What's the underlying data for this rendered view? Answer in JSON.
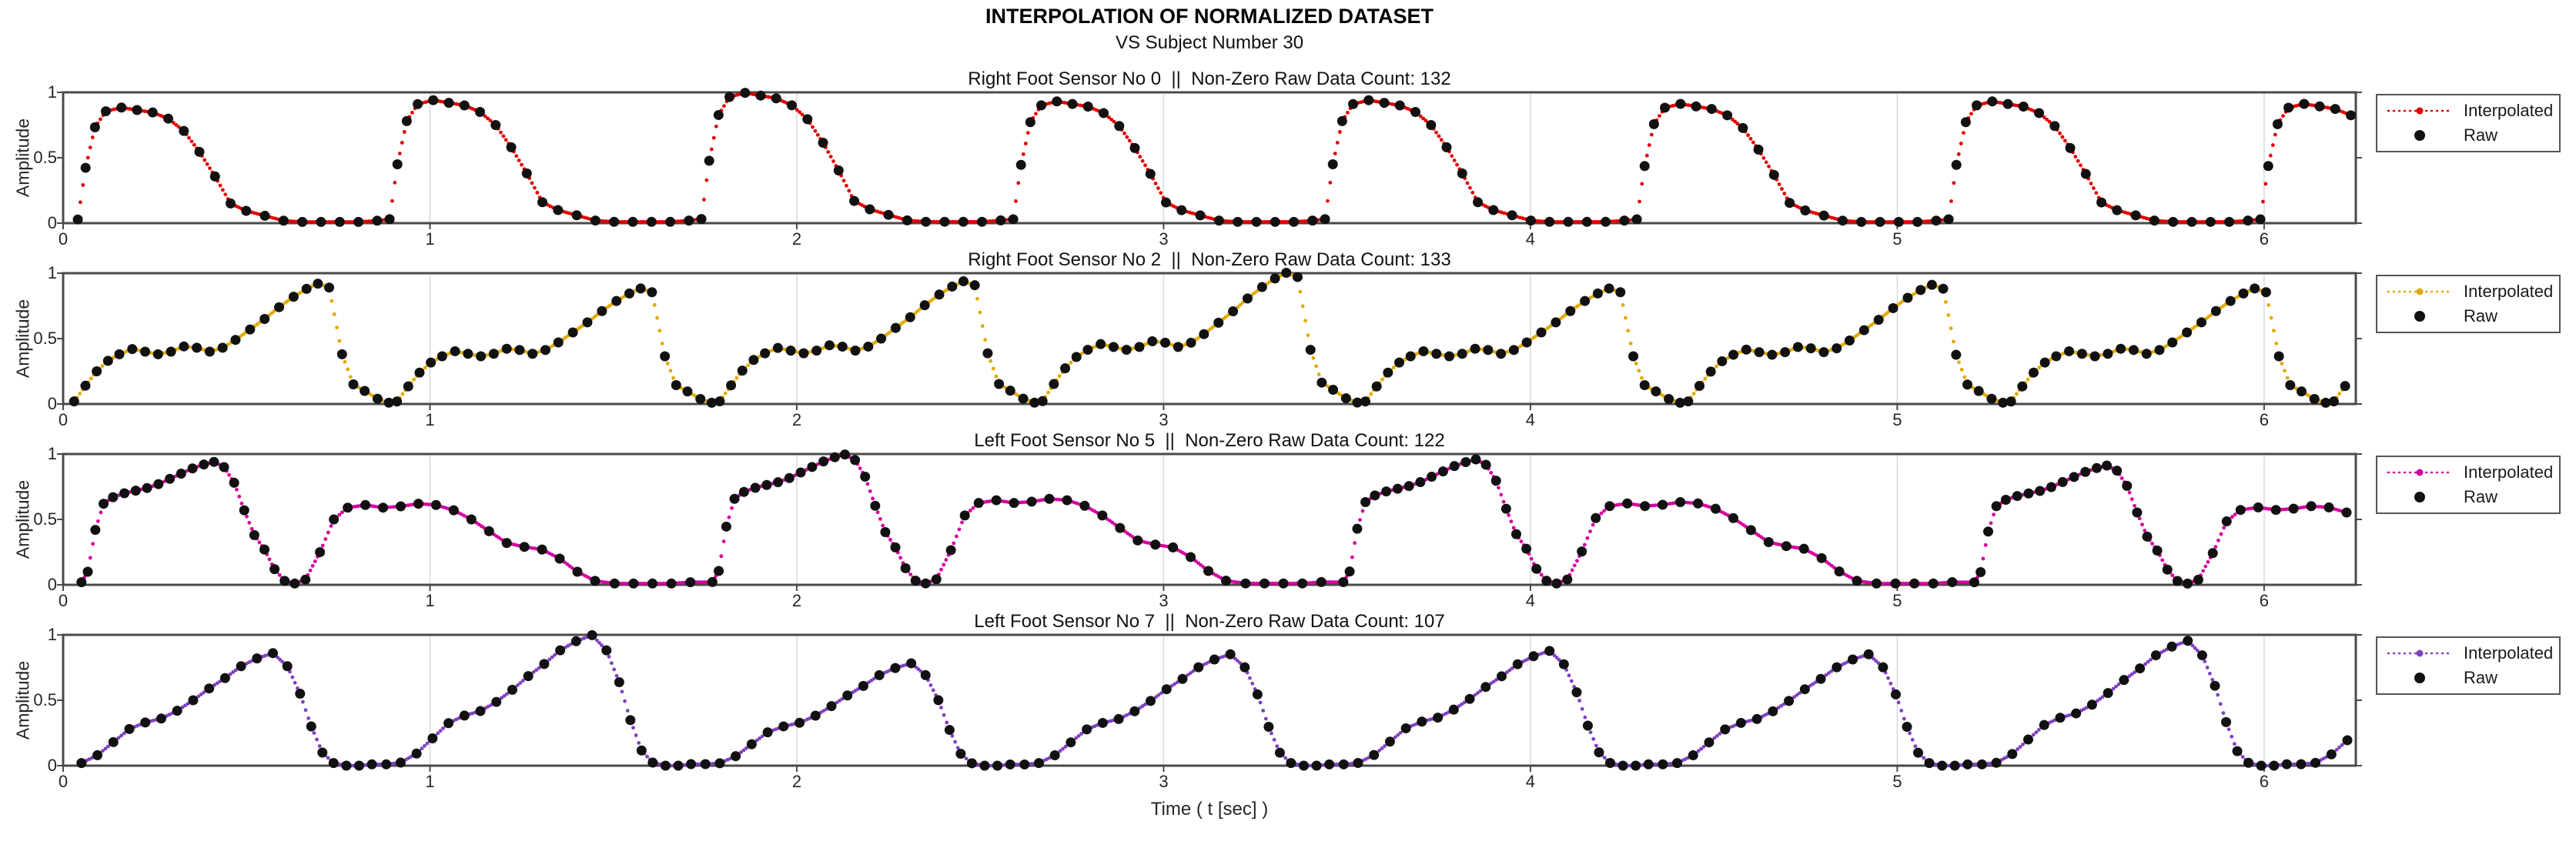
{
  "header": {
    "title": "INTERPOLATION OF NORMALIZED DATASET",
    "subtitle": "VS Subject Number 30"
  },
  "axes": {
    "xlabel": "Time ( t [sec] )",
    "ylabel": "Amplitude",
    "x_max": 6.25,
    "x_ticks": [
      0,
      1,
      2,
      3,
      4,
      5,
      6
    ],
    "y_ticks": [
      0,
      0.5,
      1
    ],
    "ylim": [
      0,
      1
    ],
    "grid": "vertical-only",
    "legend_position": "outside-right"
  },
  "colors": {
    "axis": "#4a4a4a",
    "grid": "#d9d9d9",
    "text": "#262626",
    "marker": "#111111"
  },
  "chart_data": [
    {
      "type": "line",
      "title": "Right Foot Sensor No 0  ||  Non-Zero Raw Data Count: 132",
      "sensor": "Right Foot Sensor No 0",
      "raw_count": 132,
      "line_color": "#e00000",
      "line_style": "dotted",
      "legend": [
        "Interpolated",
        "Raw"
      ],
      "waveform": {
        "t_start": 0.04,
        "period": 0.85,
        "peak_scales": [
          0.94,
          1.0,
          1.06,
          0.99,
          1.0,
          0.97,
          0.99,
          0.97
        ],
        "cycle_shape": [
          [
            0,
            0.03
          ],
          [
            0.025,
            0.45
          ],
          [
            0.055,
            0.78
          ],
          [
            0.09,
            0.91
          ],
          [
            0.14,
            0.94
          ],
          [
            0.19,
            0.92
          ],
          [
            0.24,
            0.9
          ],
          [
            0.29,
            0.85
          ],
          [
            0.34,
            0.75
          ],
          [
            0.39,
            0.58
          ],
          [
            0.44,
            0.38
          ],
          [
            0.49,
            0.16
          ],
          [
            0.54,
            0.1
          ],
          [
            0.6,
            0.06
          ],
          [
            0.66,
            0.02
          ],
          [
            0.72,
            0.01
          ],
          [
            0.78,
            0.01
          ],
          [
            0.84,
            0.01
          ],
          [
            0.9,
            0.01
          ],
          [
            0.96,
            0.02
          ]
        ]
      }
    },
    {
      "type": "line",
      "title": "Right Foot Sensor No 2  ||  Non-Zero Raw Data Count: 133",
      "sensor": "Right Foot Sensor No 2",
      "raw_count": 133,
      "line_color": "#e2a904",
      "line_style": "dotted",
      "legend": [
        "Interpolated",
        "Raw"
      ],
      "waveform": {
        "t_start": 0.03,
        "period": 0.88,
        "peak_scales": [
          1.0,
          0.96,
          1.02,
          1.09,
          0.96,
          0.99,
          0.96,
          0.98
        ],
        "cycle_shape": [
          [
            0,
            0.02
          ],
          [
            0.035,
            0.14
          ],
          [
            0.07,
            0.25
          ],
          [
            0.105,
            0.33
          ],
          [
            0.14,
            0.38
          ],
          [
            0.18,
            0.42
          ],
          [
            0.22,
            0.4
          ],
          [
            0.26,
            0.38
          ],
          [
            0.3,
            0.4
          ],
          [
            0.34,
            0.44
          ],
          [
            0.38,
            0.43
          ],
          [
            0.42,
            0.4
          ],
          [
            0.46,
            0.43
          ],
          [
            0.5,
            0.49
          ],
          [
            0.545,
            0.57
          ],
          [
            0.59,
            0.65
          ],
          [
            0.635,
            0.74
          ],
          [
            0.68,
            0.82
          ],
          [
            0.72,
            0.88
          ],
          [
            0.755,
            0.92
          ],
          [
            0.79,
            0.89
          ],
          [
            0.83,
            0.38
          ],
          [
            0.865,
            0.15
          ],
          [
            0.9,
            0.1
          ],
          [
            0.94,
            0.04
          ],
          [
            0.975,
            0.01
          ]
        ]
      }
    },
    {
      "type": "line",
      "title": "Left Foot Sensor No 5  ||  Non-Zero Raw Data Count: 122",
      "sensor": "Left Foot Sensor No 5",
      "raw_count": 122,
      "line_color": "#d4009e",
      "line_style": "dotted",
      "legend": [
        "Interpolated",
        "Raw"
      ],
      "waveform": {
        "t_start": 0.05,
        "period": 1.72,
        "peak_scales": [
          1.0,
          1.06,
          1.02,
          0.97
        ],
        "cycle_shape": [
          [
            0,
            0.02
          ],
          [
            0.01,
            0.1
          ],
          [
            0.022,
            0.42
          ],
          [
            0.035,
            0.62
          ],
          [
            0.05,
            0.67
          ],
          [
            0.068,
            0.7
          ],
          [
            0.086,
            0.72
          ],
          [
            0.104,
            0.74
          ],
          [
            0.122,
            0.77
          ],
          [
            0.14,
            0.81
          ],
          [
            0.158,
            0.85
          ],
          [
            0.176,
            0.89
          ],
          [
            0.194,
            0.92
          ],
          [
            0.21,
            0.94
          ],
          [
            0.226,
            0.9
          ],
          [
            0.242,
            0.78
          ],
          [
            0.258,
            0.57
          ],
          [
            0.274,
            0.38
          ],
          [
            0.29,
            0.27
          ],
          [
            0.306,
            0.12
          ],
          [
            0.322,
            0.03
          ],
          [
            0.338,
            0.01
          ],
          [
            0.355,
            0.04
          ],
          [
            0.378,
            0.25
          ],
          [
            0.4,
            0.5
          ],
          [
            0.422,
            0.59
          ],
          [
            0.45,
            0.61
          ],
          [
            0.478,
            0.59
          ],
          [
            0.506,
            0.6
          ],
          [
            0.534,
            0.62
          ],
          [
            0.562,
            0.61
          ],
          [
            0.59,
            0.57
          ],
          [
            0.618,
            0.5
          ],
          [
            0.646,
            0.41
          ],
          [
            0.674,
            0.32
          ],
          [
            0.702,
            0.29
          ],
          [
            0.73,
            0.27
          ],
          [
            0.758,
            0.2
          ],
          [
            0.786,
            0.1
          ],
          [
            0.814,
            0.03
          ],
          [
            0.845,
            0.01
          ],
          [
            0.875,
            0.01
          ],
          [
            0.905,
            0.01
          ],
          [
            0.935,
            0.01
          ],
          [
            0.965,
            0.02
          ]
        ]
      }
    },
    {
      "type": "line",
      "title": "Left Foot Sensor No 7  ||  Non-Zero Raw Data Count: 107",
      "sensor": "Left Foot Sensor No 7",
      "raw_count": 107,
      "line_color": "#8040c0",
      "line_style": "dotted",
      "legend": [
        "Interpolated",
        "Raw"
      ],
      "waveform": {
        "t_start": 0.05,
        "period": 0.87,
        "peak_scales": [
          1.0,
          1.16,
          0.91,
          0.99,
          1.02,
          0.99,
          1.11,
          1.08
        ],
        "cycle_shape": [
          [
            0,
            0.02
          ],
          [
            0.05,
            0.08
          ],
          [
            0.1,
            0.18
          ],
          [
            0.15,
            0.28
          ],
          [
            0.2,
            0.33
          ],
          [
            0.25,
            0.36
          ],
          [
            0.3,
            0.42
          ],
          [
            0.35,
            0.5
          ],
          [
            0.4,
            0.59
          ],
          [
            0.45,
            0.67
          ],
          [
            0.5,
            0.76
          ],
          [
            0.55,
            0.82
          ],
          [
            0.6,
            0.86
          ],
          [
            0.645,
            0.76
          ],
          [
            0.685,
            0.55
          ],
          [
            0.72,
            0.3
          ],
          [
            0.755,
            0.1
          ],
          [
            0.79,
            0.02
          ],
          [
            0.83,
            0
          ],
          [
            0.87,
            0
          ],
          [
            0.91,
            0.01
          ],
          [
            0.955,
            0.01
          ]
        ]
      }
    }
  ]
}
